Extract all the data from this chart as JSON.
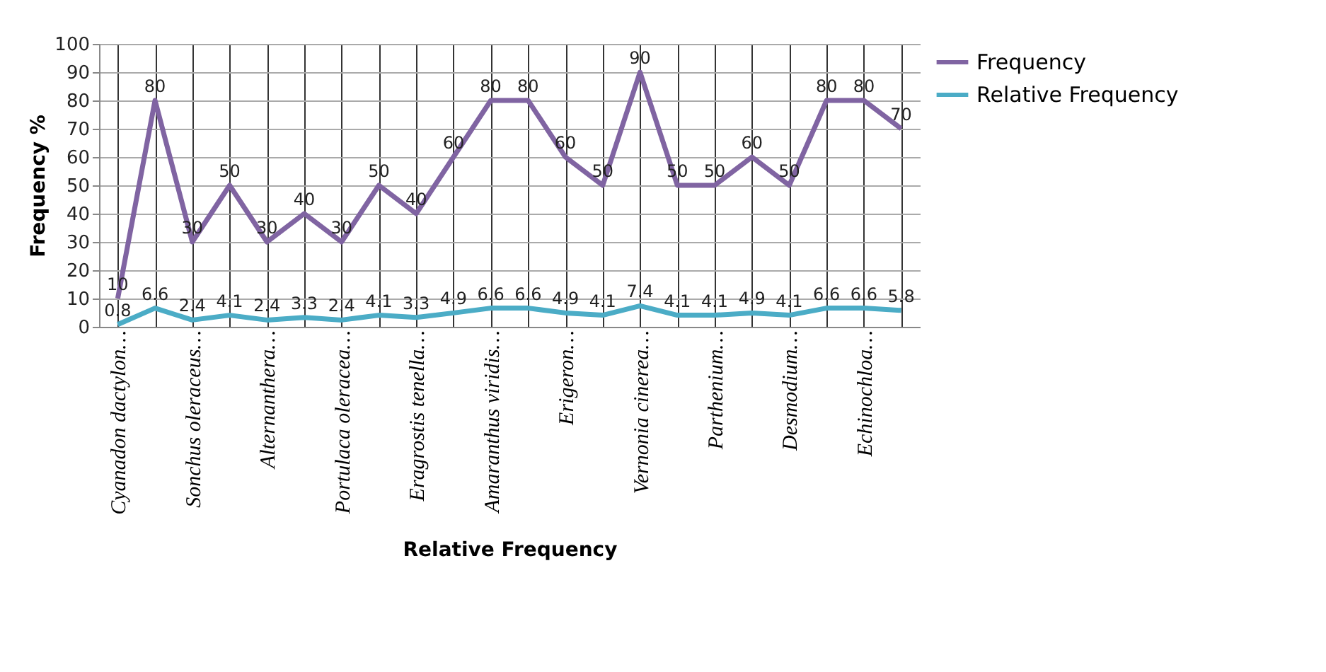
{
  "chart_data": {
    "type": "line",
    "xlabel": "Relative Frequency",
    "ylabel": "Frequency %",
    "categories": [
      "Cyanadon dactylon…",
      null,
      "Sonchus oleraceus…",
      null,
      "Alternanthera…",
      null,
      "Portulaca oleracea…",
      null,
      "Eragrostis tenella…",
      null,
      "Amaranthus viridis…",
      null,
      "Erigeron…",
      null,
      "Vernonia cinerea…",
      null,
      "Parthenium…",
      null,
      "Desmodium…",
      null,
      "Echinochloa…",
      null
    ],
    "series": [
      {
        "name": "Frequency",
        "color": "#8064a2",
        "values": [
          10,
          80,
          30,
          50,
          30,
          40,
          30,
          50,
          40,
          60,
          80,
          80,
          60,
          50,
          90,
          50,
          50,
          60,
          50,
          80,
          80,
          70
        ]
      },
      {
        "name": "Relative Frequency",
        "color": "#4bacc6",
        "values": [
          0.8,
          6.6,
          2.4,
          4.1,
          2.4,
          3.3,
          2.4,
          4.1,
          3.3,
          4.9,
          6.6,
          6.6,
          4.9,
          4.1,
          7.4,
          4.1,
          4.1,
          4.9,
          4.1,
          6.6,
          6.6,
          5.8
        ]
      }
    ],
    "ylim": [
      0,
      100
    ],
    "yticks": [
      0,
      10,
      20,
      30,
      40,
      50,
      60,
      70,
      80,
      90,
      100
    ],
    "grid": true,
    "legend": "right",
    "data_labels": true,
    "marker": "none",
    "line_style": "solid"
  }
}
